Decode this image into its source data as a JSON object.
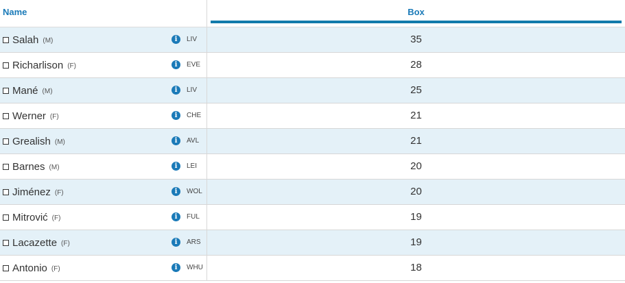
{
  "header": {
    "name_label": "Name",
    "box_label": "Box"
  },
  "colors": {
    "header_text": "#1a7ab8",
    "accent_bar": "#127bab",
    "row_alt_bg": "#e4f1f8"
  },
  "rows": [
    {
      "name": "Salah",
      "position": "(M)",
      "team": "LIV",
      "value": "35"
    },
    {
      "name": "Richarlison",
      "position": "(F)",
      "team": "EVE",
      "value": "28"
    },
    {
      "name": "Mané",
      "position": "(M)",
      "team": "LIV",
      "value": "25"
    },
    {
      "name": "Werner",
      "position": "(F)",
      "team": "CHE",
      "value": "21"
    },
    {
      "name": "Grealish",
      "position": "(M)",
      "team": "AVL",
      "value": "21"
    },
    {
      "name": "Barnes",
      "position": "(M)",
      "team": "LEI",
      "value": "20"
    },
    {
      "name": "Jiménez",
      "position": "(F)",
      "team": "WOL",
      "value": "20"
    },
    {
      "name": "Mitrović",
      "position": "(F)",
      "team": "FUL",
      "value": "19"
    },
    {
      "name": "Lacazette",
      "position": "(F)",
      "team": "ARS",
      "value": "19"
    },
    {
      "name": "Antonio",
      "position": "(F)",
      "team": "WHU",
      "value": "18"
    }
  ],
  "info_glyph": "i"
}
